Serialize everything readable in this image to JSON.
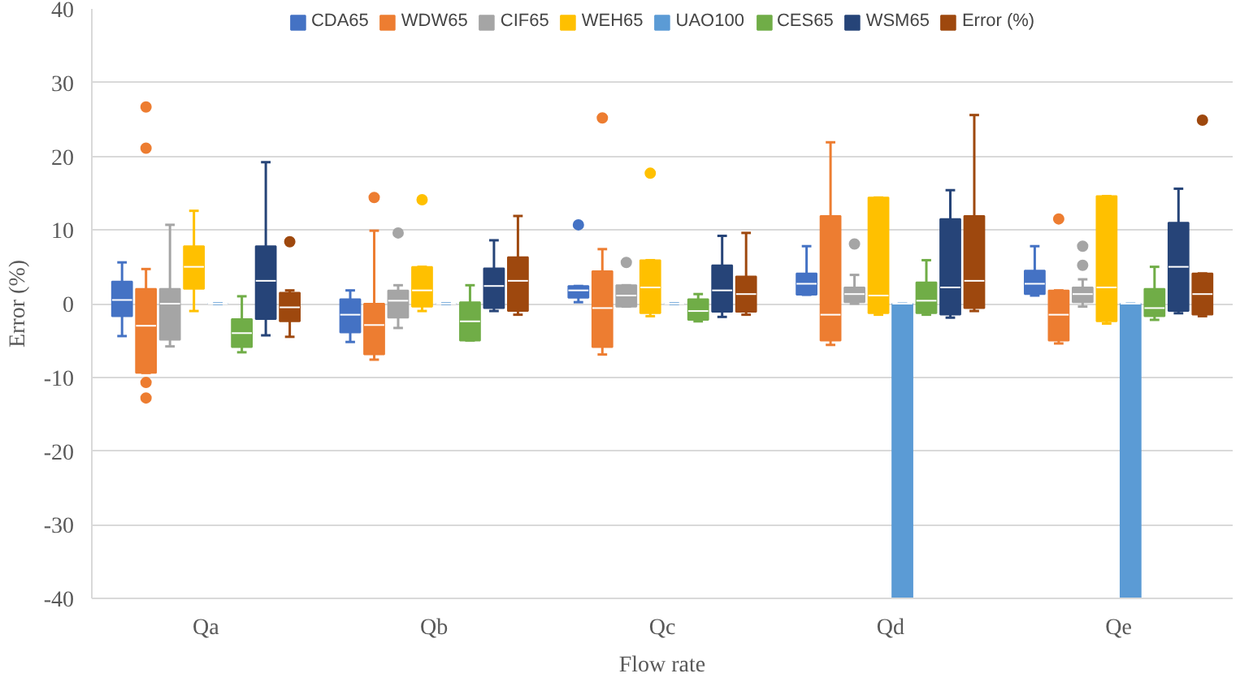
{
  "chart_data": {
    "type": "box",
    "xlabel": "Flow rate",
    "ylabel": "Error (%)",
    "categories": [
      "Qa",
      "Qb",
      "Qc",
      "Qd",
      "Qe"
    ],
    "ylim": [
      -40,
      40
    ],
    "yticks": [
      -40,
      -30,
      -20,
      -10,
      0,
      10,
      20,
      30,
      40
    ],
    "grid": "y",
    "legend": "top",
    "series": [
      {
        "name": "CDA65",
        "color": "#4472c4",
        "boxes": [
          {
            "low": -4.4,
            "q1": -1.7,
            "median": 0.5,
            "q3": 3,
            "high": 5.6
          },
          {
            "low": -5.2,
            "q1": -3.9,
            "median": -1.5,
            "q3": 0.6,
            "high": 1.8
          },
          {
            "low": 0.2,
            "q1": 0.8,
            "median": 1.8,
            "q3": 2.4,
            "high": 2.4,
            "outliers": [
              10.7
            ]
          },
          {
            "low": 1.2,
            "q1": 1.2,
            "median": 2.7,
            "q3": 4.1,
            "high": 7.8
          },
          {
            "low": 1.1,
            "q1": 1.3,
            "median": 2.7,
            "q3": 4.5,
            "high": 7.8
          }
        ]
      },
      {
        "name": "WDW65",
        "color": "#ed7d31",
        "boxes": [
          {
            "low": -9.4,
            "q1": -9.4,
            "median": -3,
            "q3": 2,
            "high": 4.7,
            "outliers": [
              26.7,
              21.1,
              -10.7,
              -12.8
            ]
          },
          {
            "low": -7.6,
            "q1": -6.9,
            "median": -2.9,
            "q3": 0,
            "high": 9.9,
            "outliers": [
              14.4
            ]
          },
          {
            "low": -6.9,
            "q1": -5.9,
            "median": -0.6,
            "q3": 4.4,
            "high": 7.4,
            "outliers": [
              25.2
            ]
          },
          {
            "low": -5.6,
            "q1": -5,
            "median": -1.5,
            "q3": 11.9,
            "high": 21.9
          },
          {
            "low": -5.4,
            "q1": -5,
            "median": -1.5,
            "q3": 1.8,
            "high": 1.8,
            "outliers": [
              11.5
            ]
          }
        ]
      },
      {
        "name": "CIF65",
        "color": "#a5a5a5",
        "boxes": [
          {
            "low": -5.8,
            "q1": -4.9,
            "median": 0,
            "q3": 2,
            "high": 10.7
          },
          {
            "low": -3.3,
            "q1": -1.9,
            "median": 0.4,
            "q3": 1.8,
            "high": 2.5,
            "outliers": [
              9.6
            ]
          },
          {
            "low": -0.4,
            "q1": -0.4,
            "median": 1.1,
            "q3": 2.5,
            "high": 2.5,
            "outliers": [
              5.6
            ]
          },
          {
            "low": 0,
            "q1": 0.2,
            "median": 1.3,
            "q3": 2.2,
            "high": 3.9,
            "outliers": [
              8.1
            ]
          },
          {
            "low": -0.4,
            "q1": 0.2,
            "median": 1.3,
            "q3": 2.2,
            "high": 3.3,
            "outliers": [
              7.8,
              5.2
            ]
          }
        ]
      },
      {
        "name": "WEH65",
        "color": "#ffc000",
        "boxes": [
          {
            "low": -1,
            "q1": 2,
            "median": 5,
            "q3": 7.8,
            "high": 12.6
          },
          {
            "low": -1,
            "q1": -0.4,
            "median": 1.8,
            "q3": 5,
            "high": 5,
            "outliers": [
              14.1
            ]
          },
          {
            "low": -1.7,
            "q1": -1.3,
            "median": 2.2,
            "q3": 5.9,
            "high": 5.9,
            "outliers": [
              17.7
            ]
          },
          {
            "low": -1.5,
            "q1": -1.3,
            "median": 1.1,
            "q3": 14.4,
            "high": 14.4
          },
          {
            "low": -2.7,
            "q1": -2.4,
            "median": 2.2,
            "q3": 14.6,
            "high": 14.6
          }
        ]
      },
      {
        "name": "UAO100",
        "color": "#5b9bd5",
        "boxes": [
          {
            "low": 0,
            "q1": 0,
            "median": 0,
            "q3": 0,
            "high": 0
          },
          {
            "low": 0,
            "q1": 0,
            "median": 0,
            "q3": 0,
            "high": 0
          },
          {
            "low": 0,
            "q1": 0,
            "median": 0,
            "q3": 0,
            "high": 0
          },
          {
            "low": -40,
            "q1": -40,
            "median": 0,
            "q3": 0,
            "high": 0
          },
          {
            "low": -40,
            "q1": -40,
            "median": 0,
            "q3": 0,
            "high": 0
          }
        ]
      },
      {
        "name": "CES65",
        "color": "#70ad47",
        "boxes": [
          {
            "low": -6.6,
            "q1": -5.9,
            "median": -4,
            "q3": -2.1,
            "high": 1
          },
          {
            "low": -5,
            "q1": -5,
            "median": -2.4,
            "q3": 0.2,
            "high": 2.5
          },
          {
            "low": -2.4,
            "q1": -2.2,
            "median": -1,
            "q3": 0.6,
            "high": 1.3
          },
          {
            "low": -1.5,
            "q1": -1.3,
            "median": 0.4,
            "q3": 2.9,
            "high": 5.9
          },
          {
            "low": -2.2,
            "q1": -1.7,
            "median": -0.6,
            "q3": 2,
            "high": 5
          }
        ]
      },
      {
        "name": "WSM65",
        "color": "#264478",
        "boxes": [
          {
            "low": -4.3,
            "q1": -2.1,
            "median": 3.1,
            "q3": 7.8,
            "high": 19.2
          },
          {
            "low": -1,
            "q1": -0.6,
            "median": 2.4,
            "q3": 4.8,
            "high": 8.6
          },
          {
            "low": -1.8,
            "q1": -1.1,
            "median": 1.8,
            "q3": 5.2,
            "high": 9.2
          },
          {
            "low": -1.9,
            "q1": -1.5,
            "median": 2.2,
            "q3": 11.5,
            "high": 15.4
          },
          {
            "low": -1.3,
            "q1": -1,
            "median": 5,
            "q3": 11,
            "high": 15.6
          }
        ]
      },
      {
        "name": "Error (%)",
        "color": "#9e480e",
        "boxes": [
          {
            "low": -4.5,
            "q1": -2.4,
            "median": -0.5,
            "q3": 1.5,
            "high": 1.8,
            "outliers": [
              8.4
            ]
          },
          {
            "low": -1.5,
            "q1": -1,
            "median": 3.1,
            "q3": 6.3,
            "high": 11.9
          },
          {
            "low": -1.5,
            "q1": -1.1,
            "median": 1.3,
            "q3": 3.7,
            "high": 9.6
          },
          {
            "low": -1,
            "q1": -0.6,
            "median": 3.1,
            "q3": 11.9,
            "high": 25.6
          },
          {
            "low": -1.7,
            "q1": -1.5,
            "median": 1.3,
            "q3": 4.1,
            "high": 4.1,
            "outliers": [
              24.9
            ]
          }
        ]
      }
    ]
  }
}
